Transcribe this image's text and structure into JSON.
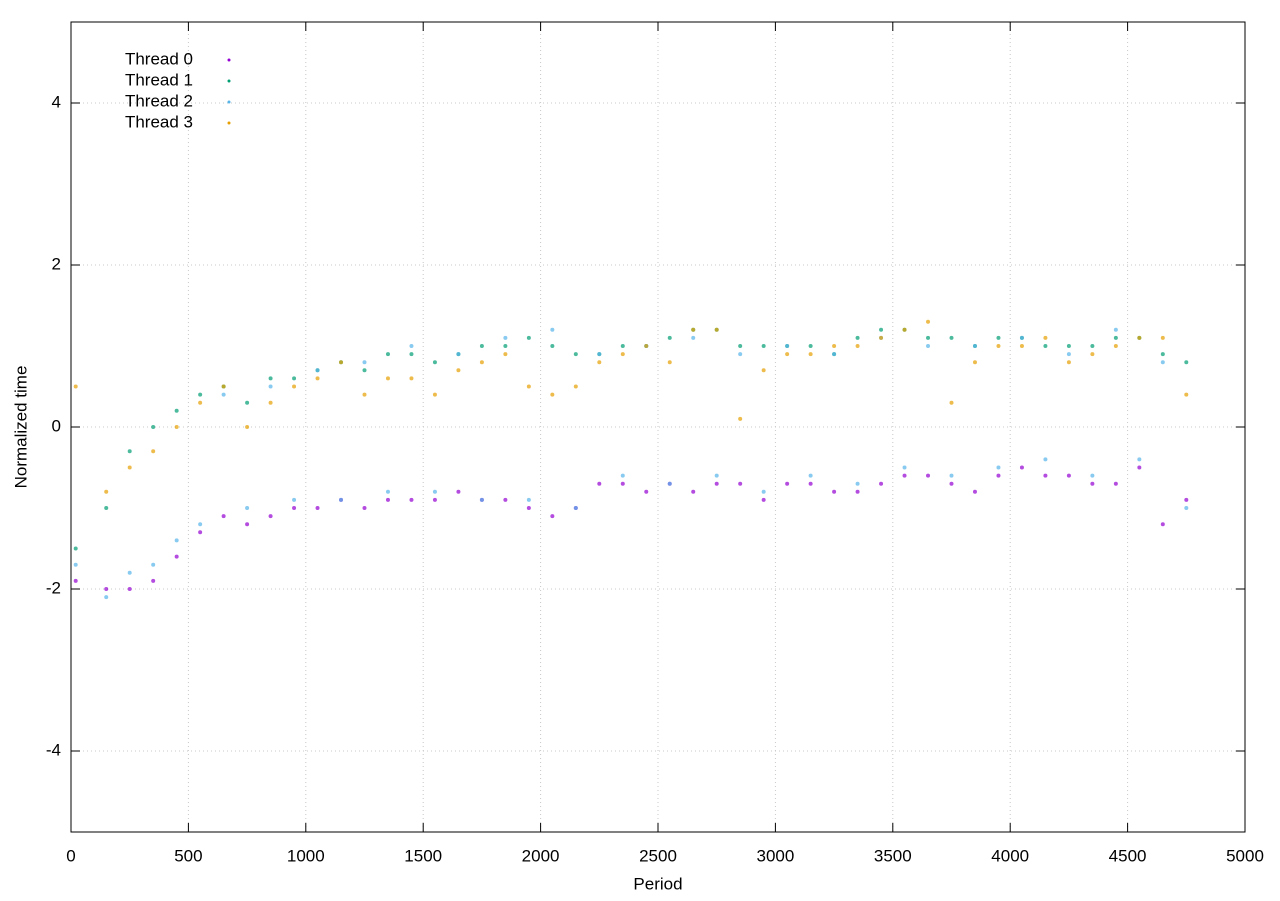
{
  "chart_data": {
    "type": "scatter",
    "x_label": "Period",
    "y_label": "Normalized time",
    "xlim": [
      0,
      5000
    ],
    "xticks": [
      0,
      500,
      1000,
      1500,
      2000,
      2500,
      3000,
      3500,
      4000,
      4500,
      5000
    ],
    "ylim": [
      -5,
      5
    ],
    "yticks": [
      -4,
      -2,
      0,
      2,
      4
    ],
    "grid": true,
    "legend": "upper left",
    "x": [
      20,
      150,
      250,
      350,
      450,
      550,
      650,
      750,
      850,
      950,
      1050,
      1150,
      1250,
      1350,
      1450,
      1550,
      1650,
      1750,
      1850,
      1950,
      2050,
      2150,
      2250,
      2350,
      2450,
      2550,
      2650,
      2750,
      2850,
      2950,
      3050,
      3150,
      3250,
      3350,
      3450,
      3550,
      3650,
      3750,
      3850,
      3950,
      4050,
      4150,
      4250,
      4350,
      4450,
      4550,
      4650,
      4750
    ],
    "series": [
      {
        "name": "Thread 0",
        "color": "#9400d3",
        "values": [
          -1.9,
          -2.0,
          -2.0,
          -1.9,
          -1.6,
          -1.3,
          -1.1,
          -1.2,
          -1.1,
          -1.0,
          -1.0,
          -0.9,
          -1.0,
          -0.9,
          -0.9,
          -0.9,
          -0.8,
          -0.9,
          -0.9,
          -1.0,
          -1.1,
          -1.0,
          -0.7,
          -0.7,
          -0.8,
          -0.7,
          -0.8,
          -0.7,
          -0.7,
          -0.9,
          -0.7,
          -0.7,
          -0.8,
          -0.8,
          -0.7,
          -0.6,
          -0.6,
          -0.7,
          -0.8,
          -0.6,
          -0.5,
          -0.6,
          -0.6,
          -0.7,
          -0.7,
          -0.5,
          -1.2,
          -0.9
        ]
      },
      {
        "name": "Thread 1",
        "color": "#009e73",
        "values": [
          -1.5,
          -1.0,
          -0.3,
          0.0,
          0.2,
          0.4,
          0.5,
          0.3,
          0.6,
          0.6,
          0.7,
          0.8,
          0.7,
          0.9,
          0.9,
          0.8,
          0.9,
          1.0,
          1.0,
          1.1,
          1.0,
          0.9,
          0.9,
          1.0,
          1.0,
          1.1,
          1.2,
          1.2,
          1.0,
          1.0,
          1.0,
          1.0,
          0.9,
          1.1,
          1.2,
          1.2,
          1.1,
          1.1,
          1.0,
          1.1,
          1.1,
          1.0,
          1.0,
          1.0,
          1.1,
          1.1,
          0.9,
          0.8
        ]
      },
      {
        "name": "Thread 2",
        "color": "#56b4e9",
        "values": [
          -1.7,
          -2.1,
          -1.8,
          -1.7,
          -1.4,
          -1.2,
          0.4,
          -1.0,
          0.5,
          -0.9,
          0.7,
          -0.9,
          0.8,
          -0.8,
          1.0,
          -0.8,
          0.9,
          -0.9,
          1.1,
          -0.9,
          1.2,
          -1.0,
          0.9,
          -0.6,
          1.0,
          -0.7,
          1.1,
          -0.6,
          0.9,
          -0.8,
          1.0,
          -0.6,
          0.9,
          -0.7,
          1.1,
          -0.5,
          1.0,
          -0.6,
          1.0,
          -0.5,
          1.1,
          -0.4,
          0.9,
          -0.6,
          1.2,
          -0.4,
          0.8,
          -1.0
        ]
      },
      {
        "name": "Thread 3",
        "color": "#e69f00",
        "values": [
          0.5,
          -0.8,
          -0.5,
          -0.3,
          0.0,
          0.3,
          0.5,
          0.0,
          0.3,
          0.5,
          0.6,
          0.8,
          0.4,
          0.6,
          0.6,
          0.4,
          0.7,
          0.8,
          0.9,
          0.5,
          0.4,
          0.5,
          0.8,
          0.9,
          1.0,
          0.8,
          1.2,
          1.2,
          0.1,
          0.7,
          0.9,
          0.9,
          1.0,
          1.0,
          1.1,
          1.2,
          1.3,
          0.3,
          0.8,
          1.0,
          1.0,
          1.1,
          0.8,
          0.9,
          1.0,
          1.1,
          1.1,
          0.4
        ]
      }
    ]
  }
}
